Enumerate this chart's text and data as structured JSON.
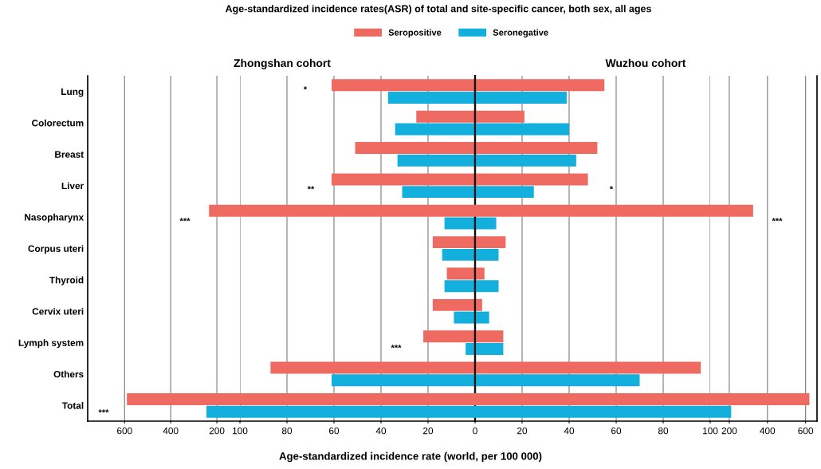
{
  "chart_data": [
    {
      "type": "bar",
      "orientation": "horizontal",
      "xlabel": "Age-standardized incidence rate (world, per 100 000)",
      "legend": "top",
      "grid": "x",
      "annotations": [
        "Age-standardized incidence rates(ASR) of total and site-specific cancer, both sex, all ages",
        "***",
        "***"
      ],
      "categories": [
        "Lung",
        "Colorectum",
        "Breast",
        "Liver",
        "Nasopharynx",
        "Corpus uteri",
        "Thyroid",
        "Cervix uteri",
        "Lymph system",
        "Others",
        "Total"
      ],
      "xlim": [
        760,
        100
      ],
      "xticks": [
        600,
        400,
        200
      ],
      "series": [
        {
          "name": "Seropositive",
          "color": "#ef6a60",
          "values": [
            null,
            null,
            null,
            null,
            234,
            null,
            null,
            null,
            null,
            null,
            590
          ]
        },
        {
          "name": "Seronegative",
          "color": "#13b0de",
          "values": [
            null,
            null,
            null,
            null,
            null,
            null,
            null,
            null,
            null,
            null,
            245
          ]
        }
      ]
    },
    {
      "type": "bar",
      "orientation": "horizontal",
      "title": "Zhongshan cohort",
      "grid": "x",
      "tick_labels": "x",
      "annotations": [
        "*",
        "**",
        "***"
      ],
      "categories": [
        null,
        null,
        null,
        null,
        null,
        null,
        null,
        null,
        null,
        null,
        null
      ],
      "xlim": [
        100,
        0
      ],
      "xticks": [
        100,
        80,
        60,
        40,
        20,
        0
      ],
      "series": [
        {
          "color": "#ef6a60",
          "values": [
            61,
            25,
            51,
            61,
            null,
            18,
            12,
            18,
            22,
            87,
            null
          ]
        },
        {
          "color": "#13b0de",
          "values": [
            37,
            34,
            33,
            31,
            13,
            14,
            13,
            9,
            4,
            61,
            null
          ]
        }
      ]
    },
    {
      "type": "bar",
      "orientation": "horizontal",
      "title": "Wuzhou cohort",
      "grid": "x",
      "tick_labels": "x",
      "annotations": [
        "*"
      ],
      "categories": [
        null,
        null,
        null,
        null,
        null,
        null,
        null,
        null,
        null,
        null,
        null
      ],
      "xlim": [
        0,
        100
      ],
      "xticks": [
        20,
        40,
        60,
        80,
        100
      ],
      "series": [
        {
          "color": "#ef6a60",
          "values": [
            55,
            21,
            52,
            48,
            null,
            13,
            4,
            3,
            12,
            96,
            null
          ]
        },
        {
          "color": "#13b0de",
          "values": [
            39,
            40,
            43,
            25,
            9,
            10,
            10,
            6,
            12,
            70,
            null
          ]
        }
      ]
    },
    {
      "type": "bar",
      "orientation": "horizontal",
      "grid": "x",
      "tick_labels": "x",
      "annotations": [
        "***"
      ],
      "categories": [
        null,
        null,
        null,
        null,
        null,
        null,
        null,
        null,
        null,
        null,
        null
      ],
      "xlim": [
        100,
        660
      ],
      "xticks": [
        200,
        400,
        600
      ],
      "series": [
        {
          "color": "#ef6a60",
          "values": [
            null,
            null,
            null,
            null,
            325,
            null,
            null,
            null,
            null,
            null,
            620
          ]
        },
        {
          "color": "#13b0de",
          "values": [
            null,
            null,
            null,
            null,
            null,
            null,
            null,
            null,
            null,
            null,
            210
          ]
        }
      ]
    }
  ]
}
